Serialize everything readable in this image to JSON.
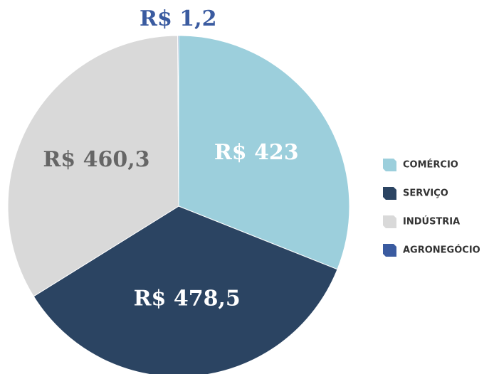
{
  "chart_data": {
    "type": "pie",
    "categories": [
      "COMÉRCIO",
      "SERVIÇO",
      "INDÚSTRIA",
      "AGRONEGÓCIO"
    ],
    "values": [
      423,
      478.5,
      460.3,
      1.2
    ],
    "value_labels": [
      "R$ 423",
      "R$ 478,5",
      "R$ 460,3",
      "R$ 1,2"
    ],
    "colors": [
      "#9ccfdc",
      "#2b4462",
      "#d9d9d9",
      "#3a5ba0"
    ]
  }
}
